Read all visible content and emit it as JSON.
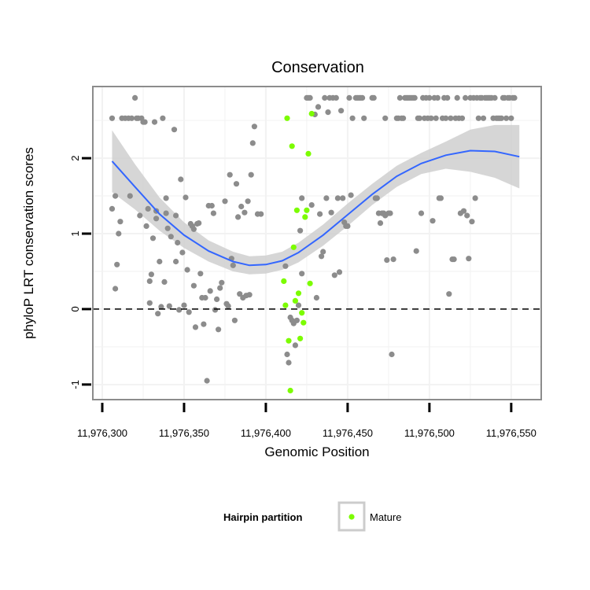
{
  "chart_data": {
    "type": "scatter",
    "title": "Conservation",
    "xlabel": "Genomic Position",
    "ylabel": "phyloP LRT conservation scores",
    "xlim": [
      11976300,
      11976552
    ],
    "ylim": [
      -1.2,
      2.95
    ],
    "x_ticks": [
      11976300,
      11976350,
      11976400,
      11976450,
      11976500,
      11976550
    ],
    "x_tick_labels": [
      "11,976,300",
      "11,976,350",
      "11,976,400",
      "11,976,450",
      "11,976,500",
      "11,976,550"
    ],
    "y_ticks": [
      -1,
      0,
      1,
      2
    ],
    "y_tick_labels": [
      "-1",
      "0",
      "1",
      "2"
    ],
    "reference_line": {
      "y": 0,
      "style": "dashed"
    },
    "grid": true,
    "legend": {
      "title": "Hairpin partition",
      "position": "bottom",
      "entries": [
        {
          "label": "Mature",
          "color": "#7cfc00"
        }
      ]
    },
    "colors": {
      "other_points": "#8c8c8c",
      "mature_points": "#7cfc00",
      "smooth_line": "#3366ff",
      "ribbon": "#cfcfcf",
      "panel_border": "#8c8c8c"
    },
    "smooth": {
      "x": [
        11976306,
        11976320,
        11976335,
        11976350,
        11976365,
        11976380,
        11976390,
        11976400,
        11976410,
        11976420,
        11976435,
        11976450,
        11976465,
        11976480,
        11976495,
        11976510,
        11976525,
        11976540,
        11976555
      ],
      "y": [
        1.96,
        1.62,
        1.26,
        0.98,
        0.77,
        0.63,
        0.58,
        0.59,
        0.64,
        0.75,
        0.98,
        1.25,
        1.52,
        1.76,
        1.93,
        2.04,
        2.1,
        2.09,
        2.02
      ],
      "lower": [
        1.55,
        1.32,
        1.04,
        0.81,
        0.63,
        0.5,
        0.46,
        0.47,
        0.52,
        0.62,
        0.84,
        1.1,
        1.38,
        1.62,
        1.79,
        1.86,
        1.82,
        1.74,
        1.6
      ],
      "upper": [
        2.37,
        1.92,
        1.48,
        1.15,
        0.91,
        0.76,
        0.7,
        0.71,
        0.76,
        0.88,
        1.12,
        1.4,
        1.66,
        1.9,
        2.07,
        2.22,
        2.38,
        2.44,
        2.44
      ]
    },
    "series": [
      {
        "name": "",
        "color": "#8c8c8c",
        "points": [
          [
            11976306,
            2.53
          ],
          [
            11976306,
            1.33
          ],
          [
            11976308,
            0.27
          ],
          [
            11976308,
            1.5
          ],
          [
            11976309,
            0.59
          ],
          [
            11976310,
            1.0
          ],
          [
            11976311,
            1.16
          ],
          [
            11976312,
            2.53
          ],
          [
            11976314,
            2.53
          ],
          [
            11976316,
            2.53
          ],
          [
            11976317,
            1.5
          ],
          [
            11976318,
            2.53
          ],
          [
            11976320,
            2.8
          ],
          [
            11976321,
            2.53
          ],
          [
            11976322,
            2.53
          ],
          [
            11976323,
            1.24
          ],
          [
            11976324,
            2.53
          ],
          [
            11976325,
            2.48
          ],
          [
            11976326,
            2.48
          ],
          [
            11976327,
            1.1
          ],
          [
            11976328,
            1.33
          ],
          [
            11976329,
            0.37
          ],
          [
            11976329,
            0.08
          ],
          [
            11976330,
            0.46
          ],
          [
            11976331,
            0.94
          ],
          [
            11976332,
            2.48
          ],
          [
            11976333,
            1.2
          ],
          [
            11976333,
            1.3
          ],
          [
            11976334,
            -0.06
          ],
          [
            11976335,
            0.63
          ],
          [
            11976336,
            0.03
          ],
          [
            11976337,
            2.53
          ],
          [
            11976338,
            0.36
          ],
          [
            11976339,
            1.47
          ],
          [
            11976339,
            1.27
          ],
          [
            11976340,
            1.07
          ],
          [
            11976341,
            0.04
          ],
          [
            11976342,
            0.96
          ],
          [
            11976344,
            2.38
          ],
          [
            11976345,
            1.24
          ],
          [
            11976345,
            0.63
          ],
          [
            11976346,
            0.88
          ],
          [
            11976347,
            -0.01
          ],
          [
            11976348,
            1.72
          ],
          [
            11976349,
            0.75
          ],
          [
            11976350,
            0.05
          ],
          [
            11976351,
            1.48
          ],
          [
            11976352,
            0.52
          ],
          [
            11976353,
            -0.04
          ],
          [
            11976354,
            1.13
          ],
          [
            11976355,
            1.1
          ],
          [
            11976356,
            0.31
          ],
          [
            11976356,
            1.06
          ],
          [
            11976357,
            -0.24
          ],
          [
            11976358,
            1.13
          ],
          [
            11976359,
            1.14
          ],
          [
            11976360,
            0.47
          ],
          [
            11976361,
            0.15
          ],
          [
            11976362,
            -0.2
          ],
          [
            11976363,
            0.15
          ],
          [
            11976364,
            -0.95
          ],
          [
            11976365,
            1.37
          ],
          [
            11976366,
            0.24
          ],
          [
            11976367,
            1.37
          ],
          [
            11976368,
            1.27
          ],
          [
            11976369,
            -0.01
          ],
          [
            11976370,
            0.13
          ],
          [
            11976371,
            -0.27
          ],
          [
            11976372,
            0.28
          ],
          [
            11976373,
            0.35
          ],
          [
            11976375,
            1.43
          ],
          [
            11976376,
            0.07
          ],
          [
            11976377,
            0.04
          ],
          [
            11976378,
            1.78
          ],
          [
            11976379,
            0.67
          ],
          [
            11976380,
            0.58
          ],
          [
            11976381,
            -0.15
          ],
          [
            11976382,
            1.66
          ],
          [
            11976383,
            1.22
          ],
          [
            11976384,
            0.2
          ],
          [
            11976385,
            1.36
          ],
          [
            11976386,
            0.15
          ],
          [
            11976387,
            1.28
          ],
          [
            11976388,
            0.18
          ],
          [
            11976389,
            1.43
          ],
          [
            11976390,
            0.19
          ],
          [
            11976391,
            1.78
          ],
          [
            11976392,
            2.2
          ],
          [
            11976393,
            2.42
          ],
          [
            11976395,
            1.26
          ],
          [
            11976397,
            1.26
          ],
          [
            11976412,
            0.57
          ],
          [
            11976413,
            -0.6
          ],
          [
            11976414,
            -0.71
          ],
          [
            11976415,
            -0.11
          ],
          [
            11976416,
            -0.15
          ],
          [
            11976417,
            -0.19
          ],
          [
            11976418,
            -0.48
          ],
          [
            11976419,
            -0.15
          ],
          [
            11976420,
            0.05
          ],
          [
            11976421,
            1.04
          ],
          [
            11976422,
            1.47
          ],
          [
            11976422,
            0.47
          ],
          [
            11976425,
            2.8
          ],
          [
            11976426,
            2.8
          ],
          [
            11976427,
            2.8
          ],
          [
            11976428,
            1.38
          ],
          [
            11976430,
            2.58
          ],
          [
            11976431,
            0.15
          ],
          [
            11976432,
            2.68
          ],
          [
            11976433,
            1.26
          ],
          [
            11976434,
            0.7
          ],
          [
            11976435,
            0.76
          ],
          [
            11976436,
            2.8
          ],
          [
            11976437,
            1.47
          ],
          [
            11976438,
            2.61
          ],
          [
            11976439,
            2.8
          ],
          [
            11976440,
            1.28
          ],
          [
            11976441,
            2.8
          ],
          [
            11976442,
            0.45
          ],
          [
            11976443,
            2.8
          ],
          [
            11976444,
            1.47
          ],
          [
            11976445,
            0.49
          ],
          [
            11976446,
            2.63
          ],
          [
            11976447,
            1.47
          ],
          [
            11976448,
            1.15
          ],
          [
            11976449,
            1.1
          ],
          [
            11976450,
            1.1
          ],
          [
            11976451,
            2.8
          ],
          [
            11976452,
            1.51
          ],
          [
            11976453,
            2.53
          ],
          [
            11976455,
            2.8
          ],
          [
            11976456,
            2.8
          ],
          [
            11976457,
            2.8
          ],
          [
            11976458,
            2.8
          ],
          [
            11976459,
            2.8
          ],
          [
            11976460,
            2.53
          ],
          [
            11976465,
            2.8
          ],
          [
            11976466,
            2.8
          ],
          [
            11976467,
            1.47
          ],
          [
            11976468,
            1.47
          ],
          [
            11976469,
            1.27
          ],
          [
            11976470,
            1.14
          ],
          [
            11976471,
            1.27
          ],
          [
            11976472,
            1.27
          ],
          [
            11976473,
            1.24
          ],
          [
            11976473,
            2.53
          ],
          [
            11976474,
            0.65
          ],
          [
            11976475,
            1.27
          ],
          [
            11976476,
            1.27
          ],
          [
            11976477,
            -0.6
          ],
          [
            11976478,
            0.66
          ],
          [
            11976480,
            2.53
          ],
          [
            11976481,
            2.53
          ],
          [
            11976482,
            2.8
          ],
          [
            11976483,
            2.53
          ],
          [
            11976484,
            2.53
          ],
          [
            11976485,
            2.8
          ],
          [
            11976486,
            2.8
          ],
          [
            11976487,
            2.8
          ],
          [
            11976488,
            2.8
          ],
          [
            11976489,
            2.8
          ],
          [
            11976490,
            2.8
          ],
          [
            11976491,
            2.8
          ],
          [
            11976492,
            0.77
          ],
          [
            11976493,
            2.53
          ],
          [
            11976494,
            2.53
          ],
          [
            11976495,
            1.27
          ],
          [
            11976496,
            2.8
          ],
          [
            11976497,
            2.53
          ],
          [
            11976498,
            2.8
          ],
          [
            11976499,
            2.53
          ],
          [
            11976500,
            2.8
          ],
          [
            11976501,
            2.53
          ],
          [
            11976502,
            1.17
          ],
          [
            11976503,
            2.8
          ],
          [
            11976504,
            2.53
          ],
          [
            11976505,
            2.8
          ],
          [
            11976506,
            1.47
          ],
          [
            11976507,
            1.47
          ],
          [
            11976508,
            2.53
          ],
          [
            11976509,
            2.8
          ],
          [
            11976510,
            2.53
          ],
          [
            11976511,
            2.8
          ],
          [
            11976512,
            0.2
          ],
          [
            11976513,
            2.53
          ],
          [
            11976514,
            0.66
          ],
          [
            11976515,
            0.66
          ],
          [
            11976516,
            2.53
          ],
          [
            11976517,
            2.8
          ],
          [
            11976518,
            2.53
          ],
          [
            11976519,
            1.27
          ],
          [
            11976520,
            2.53
          ],
          [
            11976521,
            1.3
          ],
          [
            11976522,
            2.8
          ],
          [
            11976523,
            1.24
          ],
          [
            11976524,
            0.67
          ],
          [
            11976525,
            2.8
          ],
          [
            11976526,
            1.16
          ],
          [
            11976527,
            2.8
          ],
          [
            11976528,
            1.47
          ],
          [
            11976529,
            2.8
          ],
          [
            11976530,
            2.53
          ],
          [
            11976531,
            2.8
          ],
          [
            11976532,
            2.8
          ],
          [
            11976533,
            2.53
          ],
          [
            11976534,
            2.8
          ],
          [
            11976535,
            2.8
          ],
          [
            11976536,
            2.8
          ],
          [
            11976537,
            2.8
          ],
          [
            11976538,
            2.8
          ],
          [
            11976539,
            2.53
          ],
          [
            11976540,
            2.8
          ],
          [
            11976541,
            2.53
          ],
          [
            11976542,
            2.53
          ],
          [
            11976543,
            2.53
          ],
          [
            11976544,
            2.53
          ],
          [
            11976545,
            2.8
          ],
          [
            11976546,
            2.8
          ],
          [
            11976547,
            2.53
          ],
          [
            11976548,
            2.8
          ],
          [
            11976549,
            2.8
          ],
          [
            11976550,
            2.53
          ],
          [
            11976551,
            2.8
          ],
          [
            11976552,
            2.8
          ]
        ]
      },
      {
        "name": "Mature",
        "color": "#7cfc00",
        "points": [
          [
            11976411,
            0.37
          ],
          [
            11976412,
            0.05
          ],
          [
            11976413,
            2.53
          ],
          [
            11976414,
            -0.42
          ],
          [
            11976415,
            -1.08
          ],
          [
            11976416,
            2.16
          ],
          [
            11976417,
            0.82
          ],
          [
            11976418,
            0.11
          ],
          [
            11976419,
            1.31
          ],
          [
            11976420,
            0.21
          ],
          [
            11976421,
            -0.39
          ],
          [
            11976422,
            -0.05
          ],
          [
            11976423,
            -0.18
          ],
          [
            11976424,
            1.22
          ],
          [
            11976425,
            1.31
          ],
          [
            11976426,
            2.06
          ],
          [
            11976427,
            0.34
          ],
          [
            11976428,
            2.59
          ]
        ]
      }
    ]
  }
}
